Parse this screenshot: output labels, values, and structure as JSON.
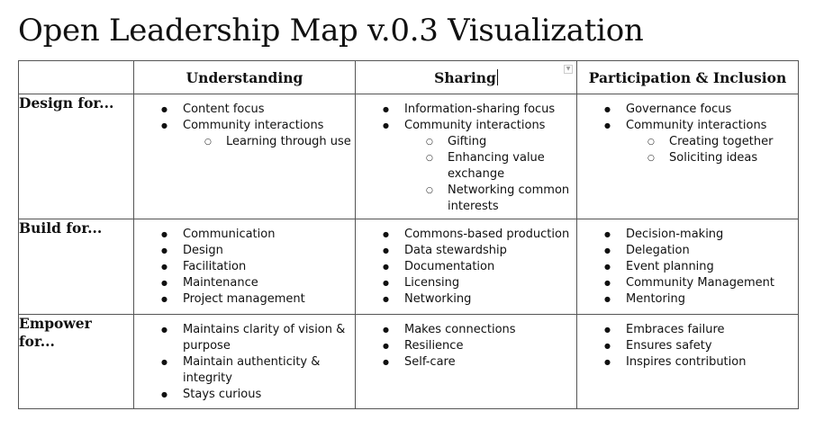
{
  "title": "Open Leadership Map v.0.3 Visualization",
  "columns": [
    "Understanding",
    "Sharing",
    "Participation & Inclusion"
  ],
  "rows": [
    {
      "label_lines": [
        "Design for..."
      ],
      "cells": [
        [
          {
            "text": "Content focus",
            "sub": []
          },
          {
            "text": "Community interactions",
            "sub": [
              "Learning through use"
            ]
          }
        ],
        [
          {
            "text": "Information-sharing focus",
            "sub": []
          },
          {
            "text": "Community interactions",
            "sub": [
              "Gifting",
              "Enhancing value exchange",
              "Networking common interests"
            ]
          }
        ],
        [
          {
            "text": "Governance focus",
            "sub": []
          },
          {
            "text": "Community interactions",
            "sub": [
              "Creating together",
              "Soliciting ideas"
            ]
          }
        ]
      ]
    },
    {
      "label_lines": [
        "Build for..."
      ],
      "cells": [
        [
          {
            "text": "Communication",
            "sub": []
          },
          {
            "text": "Design",
            "sub": []
          },
          {
            "text": "Facilitation",
            "sub": []
          },
          {
            "text": "Maintenance",
            "sub": []
          },
          {
            "text": "Project management",
            "sub": []
          }
        ],
        [
          {
            "text": "Commons-based production",
            "sub": []
          },
          {
            "text": "Data stewardship",
            "sub": []
          },
          {
            "text": "Documentation",
            "sub": []
          },
          {
            "text": "Licensing",
            "sub": []
          },
          {
            "text": "Networking",
            "sub": []
          }
        ],
        [
          {
            "text": "Decision-making",
            "sub": []
          },
          {
            "text": "Delegation",
            "sub": []
          },
          {
            "text": "Event planning",
            "sub": []
          },
          {
            "text": "Community Management",
            "sub": []
          },
          {
            "text": "Mentoring",
            "sub": []
          }
        ]
      ]
    },
    {
      "label_lines": [
        "Empower",
        "for..."
      ],
      "cells": [
        [
          {
            "text": "Maintains clarity of vision & purpose",
            "sub": []
          },
          {
            "text": "Maintain authenticity & integrity",
            "sub": []
          },
          {
            "text": "Stays curious",
            "sub": []
          }
        ],
        [
          {
            "text": "Makes connections",
            "sub": []
          },
          {
            "text": "Resilience",
            "sub": []
          },
          {
            "text": "Self-care",
            "sub": []
          }
        ],
        [
          {
            "text": "Embraces failure",
            "sub": []
          },
          {
            "text": "Ensures safety",
            "sub": []
          },
          {
            "text": "Inspires contribution",
            "sub": []
          }
        ]
      ]
    }
  ]
}
